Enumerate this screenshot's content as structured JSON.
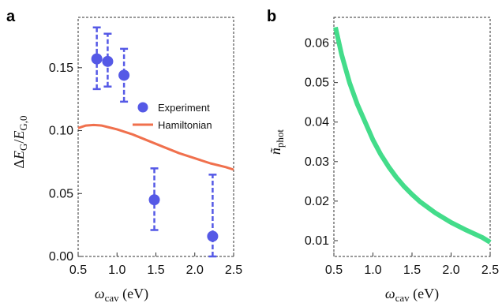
{
  "chart_data": [
    {
      "panel": "a",
      "type": "scatter",
      "xlabel": "ω_cav (eV)",
      "ylabel": "ΔE_G/E_G,0",
      "xlim": [
        0.5,
        2.5
      ],
      "ylim": [
        0.0,
        0.19
      ],
      "xticks": [
        "0.5",
        "1.0",
        "1.5",
        "2.0",
        "2.5"
      ],
      "yticks": [
        "0.00",
        "0.05",
        "0.10",
        "0.15"
      ],
      "legend_placement": "right-middle",
      "series": [
        {
          "name": "Experiment",
          "kind": "points-with-errorbars",
          "color": "#5559e6",
          "x": [
            0.74,
            0.88,
            1.09,
            1.48,
            2.23
          ],
          "y": [
            0.157,
            0.155,
            0.144,
            0.045,
            0.016
          ],
          "yerr_low": [
            0.133,
            0.135,
            0.123,
            0.021,
            0.0
          ],
          "yerr_high": [
            0.182,
            0.177,
            0.165,
            0.07,
            0.065
          ]
        },
        {
          "name": "Hamiltonian",
          "kind": "line",
          "color": "#f0704d",
          "x": [
            0.5,
            0.6,
            0.7,
            0.8,
            0.9,
            1.0,
            1.2,
            1.4,
            1.6,
            1.8,
            2.0,
            2.2,
            2.4,
            2.5
          ],
          "y": [
            0.102,
            0.104,
            0.1045,
            0.104,
            0.1025,
            0.101,
            0.097,
            0.092,
            0.087,
            0.082,
            0.078,
            0.074,
            0.071,
            0.069
          ]
        }
      ]
    },
    {
      "panel": "b",
      "type": "line",
      "xlabel": "ω_cav (eV)",
      "ylabel": "ñ_phot",
      "xlim": [
        0.5,
        2.5
      ],
      "ylim": [
        0.006,
        0.0665
      ],
      "xticks": [
        "0.5",
        "1.0",
        "1.5",
        "2.0",
        "2.5"
      ],
      "yticks": [
        "0.01",
        "0.02",
        "0.03",
        "0.04",
        "0.05",
        "0.06"
      ],
      "series": [
        {
          "color": "#43dc8a",
          "x": [
            0.52,
            0.6,
            0.7,
            0.8,
            0.9,
            1.0,
            1.1,
            1.2,
            1.3,
            1.4,
            1.5,
            1.6,
            1.8,
            2.0,
            2.2,
            2.4,
            2.5
          ],
          "y": [
            0.064,
            0.057,
            0.05,
            0.0445,
            0.04,
            0.0355,
            0.0318,
            0.0287,
            0.026,
            0.0237,
            0.0217,
            0.0199,
            0.017,
            0.0146,
            0.0126,
            0.0108,
            0.0096
          ]
        }
      ]
    }
  ],
  "panels": {
    "a": {
      "letter": "a"
    },
    "b": {
      "letter": "b"
    }
  },
  "legend": {
    "experiment": "Experiment",
    "hamiltonian": "Hamiltonian"
  }
}
